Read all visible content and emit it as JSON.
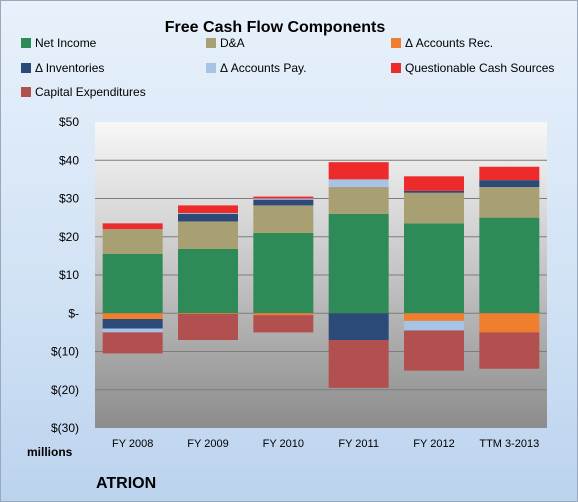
{
  "chart_data": {
    "type": "bar",
    "stacked": true,
    "title": "Free Cash Flow Components",
    "ylabel": "millions",
    "brand": "ATRION",
    "ylim": [
      -30,
      50
    ],
    "yticks": [
      50,
      40,
      30,
      20,
      10,
      0,
      -10,
      -20,
      -30
    ],
    "ytick_labels": [
      "$50",
      "$40",
      "$30",
      "$20",
      "$10",
      "$-",
      "$(10)",
      "$(20)",
      "$(30)"
    ],
    "categories": [
      "FY 2008",
      "FY 2009",
      "FY 2010",
      "FY 2011",
      "FY 2012",
      "TTM 3-2013"
    ],
    "grid": true,
    "legend_position": "top",
    "series": [
      {
        "name": "Net Income",
        "color": "#2e8b57",
        "values": [
          15.5,
          16.8,
          21.0,
          26.0,
          23.5,
          25.0
        ]
      },
      {
        "name": "D&A",
        "color": "#a8a073",
        "values": [
          6.5,
          7.2,
          7.2,
          7.0,
          8.0,
          8.0
        ]
      },
      {
        "name": "Δ Accounts Rec.",
        "color": "#ef7f2e",
        "values": [
          -1.5,
          -0.2,
          -0.5,
          0.0,
          -2.0,
          -5.0
        ]
      },
      {
        "name": "Δ Inventories",
        "color": "#2c4a78",
        "values": [
          -2.5,
          2.0,
          1.5,
          -7.0,
          0.5,
          1.8
        ]
      },
      {
        "name": "Δ Accounts Pay.",
        "color": "#a7c4e5",
        "values": [
          -1.0,
          0.2,
          0.3,
          2.0,
          -2.5,
          0.0
        ]
      },
      {
        "name": "Questionable Cash Sources",
        "color": "#ee2b2b",
        "values": [
          1.5,
          2.0,
          0.5,
          4.5,
          3.8,
          3.5
        ]
      },
      {
        "name": "Capital Expenditures",
        "color": "#b24f4f",
        "values": [
          -5.5,
          -6.8,
          -4.5,
          -12.5,
          -10.5,
          -9.5
        ]
      }
    ]
  }
}
